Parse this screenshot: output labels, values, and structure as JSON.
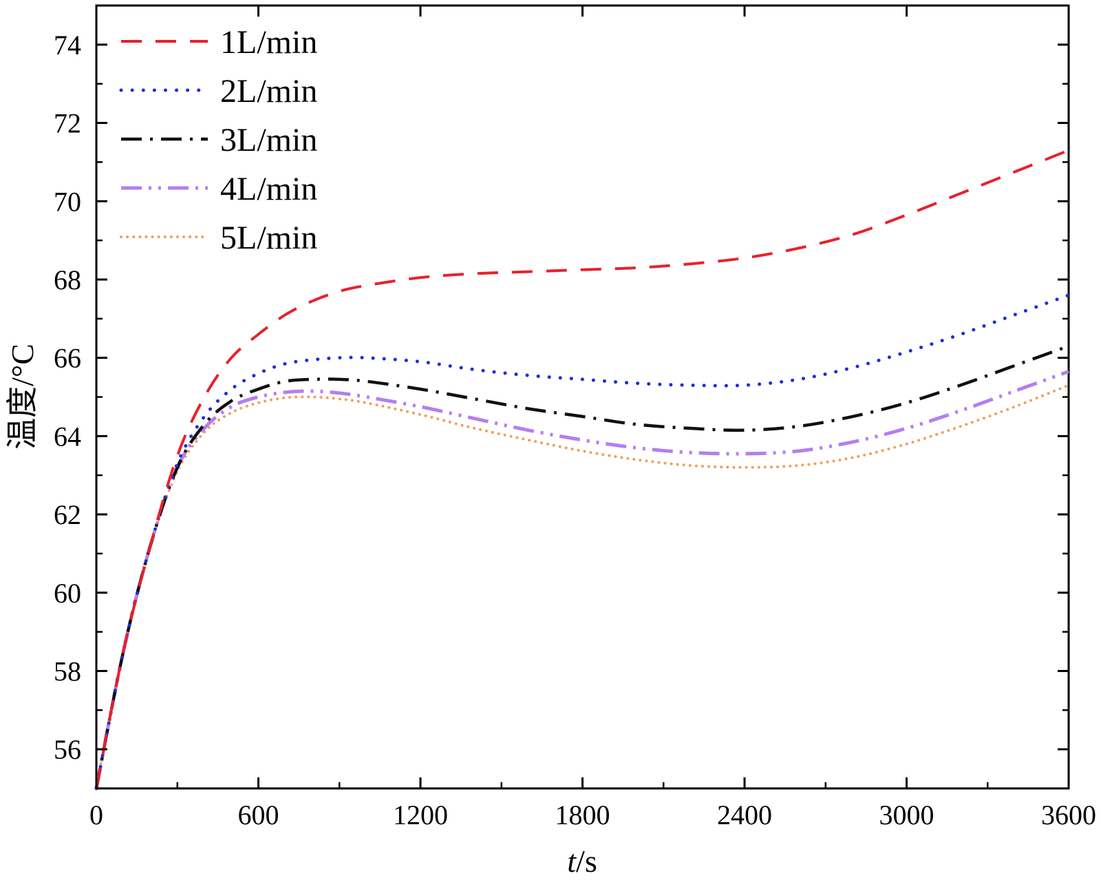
{
  "chart_data": {
    "type": "line",
    "xlabel_italic": "t",
    "xlabel_rest": "/s",
    "ylabel": "温度/°C",
    "xlim": [
      0,
      3600
    ],
    "ylim": [
      55,
      75
    ],
    "x_ticks": [
      0,
      600,
      1200,
      1800,
      2400,
      3000,
      3600
    ],
    "y_ticks": [
      56,
      58,
      60,
      62,
      64,
      66,
      68,
      70,
      72,
      74
    ],
    "grid": false,
    "legend_position": "top-left",
    "series": [
      {
        "name": "1L/min",
        "color": "#e8212a",
        "dash": "dash",
        "points": [
          [
            0,
            55
          ],
          [
            100,
            58.5
          ],
          [
            200,
            61.2
          ],
          [
            300,
            63.5
          ],
          [
            400,
            65.0
          ],
          [
            500,
            66.0
          ],
          [
            600,
            66.6
          ],
          [
            700,
            67.1
          ],
          [
            800,
            67.45
          ],
          [
            900,
            67.7
          ],
          [
            1000,
            67.85
          ],
          [
            1200,
            68.05
          ],
          [
            1400,
            68.15
          ],
          [
            1600,
            68.2
          ],
          [
            1800,
            68.25
          ],
          [
            2000,
            68.3
          ],
          [
            2200,
            68.4
          ],
          [
            2400,
            68.55
          ],
          [
            2600,
            68.8
          ],
          [
            2800,
            69.15
          ],
          [
            3000,
            69.65
          ],
          [
            3200,
            70.2
          ],
          [
            3400,
            70.75
          ],
          [
            3600,
            71.3
          ]
        ]
      },
      {
        "name": "2L/min",
        "color": "#1f2ed6",
        "dash": "dot",
        "points": [
          [
            0,
            55
          ],
          [
            100,
            58.5
          ],
          [
            200,
            61.2
          ],
          [
            300,
            63.3
          ],
          [
            400,
            64.5
          ],
          [
            500,
            65.2
          ],
          [
            600,
            65.6
          ],
          [
            700,
            65.85
          ],
          [
            800,
            65.95
          ],
          [
            900,
            66.0
          ],
          [
            1000,
            66.0
          ],
          [
            1200,
            65.9
          ],
          [
            1400,
            65.7
          ],
          [
            1600,
            65.55
          ],
          [
            1800,
            65.45
          ],
          [
            2000,
            65.35
          ],
          [
            2200,
            65.3
          ],
          [
            2400,
            65.3
          ],
          [
            2600,
            65.45
          ],
          [
            2800,
            65.75
          ],
          [
            3000,
            66.15
          ],
          [
            3200,
            66.6
          ],
          [
            3400,
            67.1
          ],
          [
            3600,
            67.6
          ]
        ]
      },
      {
        "name": "3L/min",
        "color": "#111111",
        "dash": "dashdot",
        "points": [
          [
            0,
            55
          ],
          [
            100,
            58.5
          ],
          [
            200,
            61.2
          ],
          [
            300,
            63.2
          ],
          [
            400,
            64.3
          ],
          [
            500,
            64.9
          ],
          [
            600,
            65.2
          ],
          [
            700,
            65.4
          ],
          [
            800,
            65.45
          ],
          [
            900,
            65.45
          ],
          [
            1000,
            65.4
          ],
          [
            1200,
            65.2
          ],
          [
            1400,
            64.95
          ],
          [
            1600,
            64.7
          ],
          [
            1800,
            64.5
          ],
          [
            2000,
            64.3
          ],
          [
            2200,
            64.2
          ],
          [
            2400,
            64.15
          ],
          [
            2600,
            64.25
          ],
          [
            2800,
            64.5
          ],
          [
            3000,
            64.85
          ],
          [
            3200,
            65.3
          ],
          [
            3400,
            65.8
          ],
          [
            3600,
            66.3
          ]
        ]
      },
      {
        "name": "4L/min",
        "color": "#b57ef0",
        "dash": "dashdotdot",
        "points": [
          [
            0,
            55
          ],
          [
            100,
            58.5
          ],
          [
            200,
            61.2
          ],
          [
            300,
            63.2
          ],
          [
            400,
            64.2
          ],
          [
            500,
            64.75
          ],
          [
            600,
            65.0
          ],
          [
            700,
            65.12
          ],
          [
            800,
            65.15
          ],
          [
            900,
            65.1
          ],
          [
            1000,
            65.0
          ],
          [
            1200,
            64.75
          ],
          [
            1400,
            64.45
          ],
          [
            1600,
            64.15
          ],
          [
            1800,
            63.9
          ],
          [
            2000,
            63.7
          ],
          [
            2200,
            63.58
          ],
          [
            2400,
            63.55
          ],
          [
            2600,
            63.62
          ],
          [
            2800,
            63.85
          ],
          [
            3000,
            64.2
          ],
          [
            3200,
            64.65
          ],
          [
            3400,
            65.15
          ],
          [
            3600,
            65.65
          ]
        ]
      },
      {
        "name": "5L/min",
        "color": "#f0a05a",
        "dash": "dense-dot",
        "points": [
          [
            0,
            55
          ],
          [
            100,
            58.5
          ],
          [
            200,
            61.2
          ],
          [
            300,
            63.1
          ],
          [
            400,
            64.1
          ],
          [
            500,
            64.6
          ],
          [
            600,
            64.85
          ],
          [
            700,
            64.98
          ],
          [
            800,
            65.0
          ],
          [
            900,
            64.95
          ],
          [
            1000,
            64.85
          ],
          [
            1200,
            64.55
          ],
          [
            1400,
            64.2
          ],
          [
            1600,
            63.9
          ],
          [
            1800,
            63.62
          ],
          [
            2000,
            63.4
          ],
          [
            2200,
            63.25
          ],
          [
            2400,
            63.2
          ],
          [
            2600,
            63.25
          ],
          [
            2800,
            63.45
          ],
          [
            3000,
            63.8
          ],
          [
            3200,
            64.25
          ],
          [
            3400,
            64.75
          ],
          [
            3600,
            65.3
          ]
        ]
      }
    ]
  }
}
